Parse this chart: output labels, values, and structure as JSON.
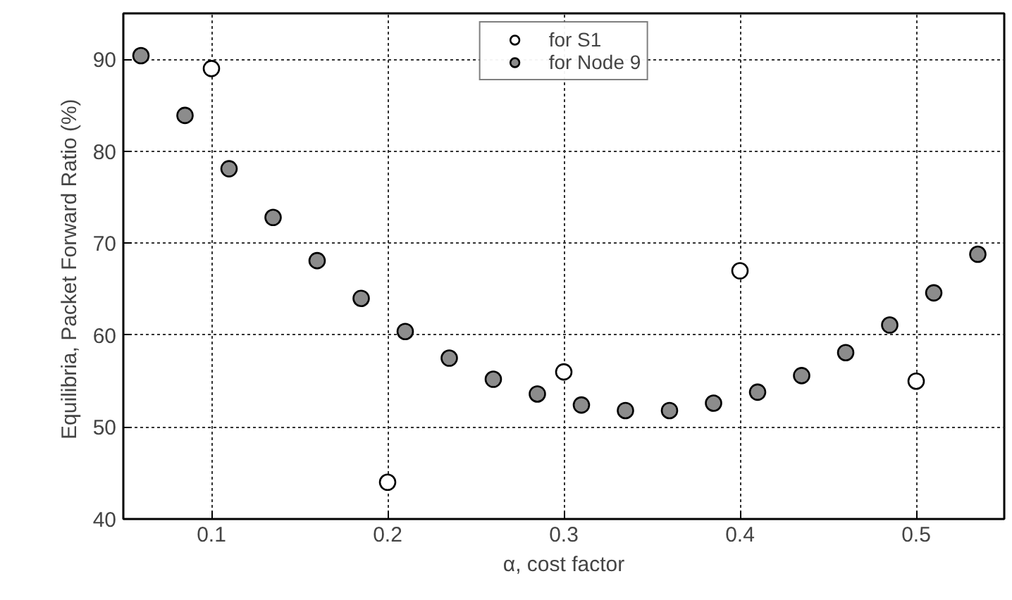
{
  "chart_data": {
    "type": "scatter",
    "xlabel": "α, cost factor",
    "ylabel": "Equilibria, Packet Forward Ratio  (%)",
    "xlim": [
      0.05,
      0.55
    ],
    "ylim": [
      40,
      95
    ],
    "xticks": [
      0.1,
      0.2,
      0.3,
      0.4,
      0.5
    ],
    "yticks": [
      40,
      50,
      60,
      70,
      80,
      90
    ],
    "grid": true,
    "legend": "top",
    "series": [
      {
        "name": "for S1",
        "color": "#ffffff",
        "marker": "circle",
        "x": [
          0.1,
          0.2,
          0.3,
          0.4,
          0.5
        ],
        "values": [
          89.0,
          44.0,
          56.0,
          67.0,
          55.0
        ]
      },
      {
        "name": "for Node 9",
        "color": "#8c8c8c",
        "marker": "circle",
        "x": [
          0.06,
          0.085,
          0.11,
          0.135,
          0.16,
          0.185,
          0.21,
          0.235,
          0.26,
          0.285,
          0.31,
          0.335,
          0.36,
          0.385,
          0.41,
          0.435,
          0.46,
          0.485,
          0.51,
          0.535
        ],
        "values": [
          90.4,
          83.9,
          78.1,
          72.8,
          68.1,
          64.0,
          60.4,
          57.5,
          55.2,
          53.6,
          52.4,
          51.8,
          51.8,
          52.6,
          53.8,
          55.6,
          58.1,
          61.1,
          64.6,
          68.8
        ]
      }
    ]
  }
}
